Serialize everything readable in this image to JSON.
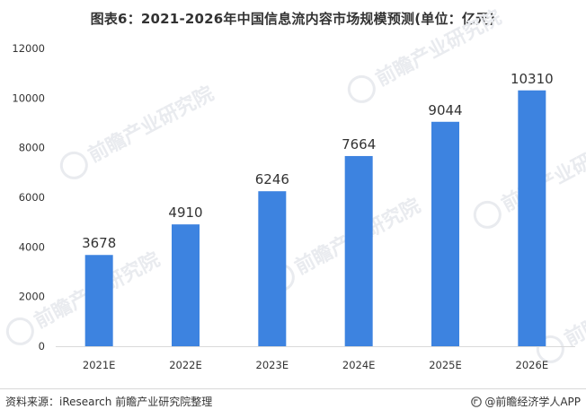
{
  "title": "图表6：2021-2026年中国信息流内容市场规模预测(单位：亿元)",
  "source": "资料来源：iResearch 前瞻产业研究院整理",
  "brand": "@前瞻经济学人APP",
  "watermark": "前瞻产业研究院",
  "colors": {
    "bar": "#3d83e0",
    "axis": "#d9d9d9",
    "text": "#333333",
    "watermark": "#e9ebef"
  },
  "chart_data": {
    "type": "bar",
    "title": "图表6：2021-2026年中国信息流内容市场规模预测(单位：亿元)",
    "xlabel": "",
    "ylabel": "",
    "categories": [
      "2021E",
      "2022E",
      "2023E",
      "2024E",
      "2025E",
      "2026E"
    ],
    "values": [
      3678,
      4910,
      6246,
      7664,
      9044,
      10310
    ],
    "data_labels": [
      "3678",
      "4910",
      "6246",
      "7664",
      "9044",
      "10310"
    ],
    "ylim": [
      0,
      12000
    ],
    "yticks": [
      0,
      2000,
      4000,
      6000,
      8000,
      10000,
      12000
    ],
    "ytick_labels": [
      "0",
      "2000",
      "4000",
      "6000",
      "8000",
      "10000",
      "12000"
    ],
    "grid": false,
    "legend": "none"
  }
}
